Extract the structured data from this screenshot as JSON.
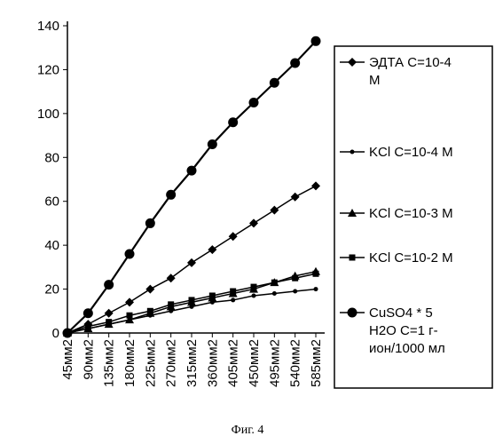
{
  "chart_data": {
    "type": "line",
    "categories": [
      "45мм2",
      "90мм2",
      "135мм2",
      "180мм2",
      "225мм2",
      "270мм2",
      "315мм2",
      "360мм2",
      "405мм2",
      "450мм2",
      "495мм2",
      "540мм2",
      "585мм2"
    ],
    "ylim": [
      0,
      140
    ],
    "yticks": [
      0,
      20,
      40,
      60,
      80,
      100,
      120,
      140
    ],
    "grid": false,
    "legend_position": "right",
    "series": [
      {
        "name": "ЭДТА С=10-4 М",
        "marker": "diamond",
        "values": [
          0,
          4,
          9,
          14,
          20,
          25,
          32,
          38,
          44,
          50,
          56,
          62,
          67
        ]
      },
      {
        "name": "KCl С=10-4 М",
        "marker": "small-circle",
        "values": [
          0,
          2,
          4,
          6,
          8,
          10,
          12,
          14,
          15,
          17,
          18,
          19,
          20
        ]
      },
      {
        "name": "KCl С=10-3 М",
        "marker": "triangle",
        "values": [
          0,
          2,
          4,
          6,
          9,
          12,
          14,
          16,
          18,
          20,
          23,
          26,
          28
        ]
      },
      {
        "name": "KCl С=10-2 М",
        "marker": "square",
        "values": [
          0,
          3,
          5,
          8,
          10,
          13,
          15,
          17,
          19,
          21,
          23,
          25,
          27
        ]
      },
      {
        "name": "CuSO4 * 5 H2O С=1 г-ион/1000 мл",
        "marker": "large-circle",
        "values": [
          0,
          9,
          22,
          36,
          50,
          63,
          74,
          86,
          96,
          105,
          114,
          123,
          133
        ]
      }
    ]
  },
  "legend": [
    [
      "ЭДТА С=10-4",
      "М"
    ],
    [
      "KCl С=10-4 М"
    ],
    [
      "KCl С=10-3 М"
    ],
    [
      "KCl С=10-2 М"
    ],
    [
      "CuSO4 * 5",
      "H2O С=1 г-",
      "ион/1000 мл"
    ]
  ],
  "caption": "Фиг. 4"
}
